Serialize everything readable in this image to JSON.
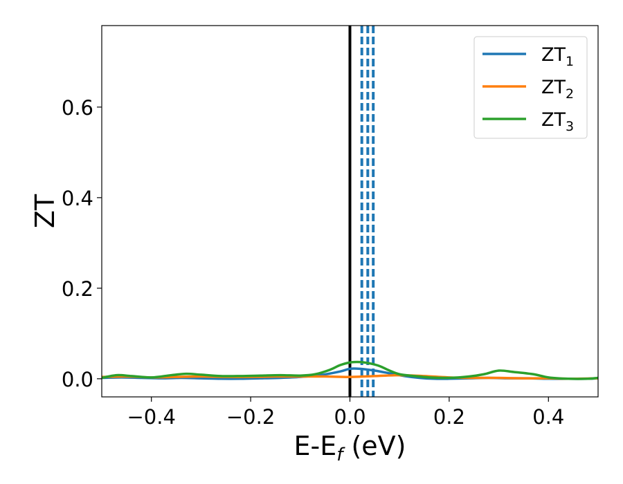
{
  "chart_data": {
    "type": "line",
    "xlabel": "E-E",
    "xlabel_sub": "f",
    "xlabel_unit": " (eV)",
    "ylabel": "ZT",
    "xlim": [
      -0.5,
      0.5
    ],
    "ylim": [
      -0.04,
      0.78
    ],
    "x_ticks": [
      -0.4,
      -0.2,
      0.0,
      0.2,
      0.4
    ],
    "x_tick_labels": [
      "−0.4",
      "−0.2",
      "0.0",
      "0.2",
      "0.4"
    ],
    "y_ticks": [
      0.0,
      0.2,
      0.4,
      0.6
    ],
    "y_tick_labels": [
      "0.0",
      "0.2",
      "0.4",
      "0.6"
    ],
    "grid": false,
    "legend_position": "top-right",
    "series": [
      {
        "name": "ZT",
        "name_sub": "1",
        "color": "#1f77b4",
        "x": [
          -0.5,
          -0.46,
          -0.42,
          -0.38,
          -0.34,
          -0.3,
          -0.26,
          -0.22,
          -0.18,
          -0.14,
          -0.1,
          -0.06,
          -0.02,
          0.0,
          0.02,
          0.05,
          0.08,
          0.11,
          0.14,
          0.17,
          0.2,
          0.24,
          0.28,
          0.32,
          0.36,
          0.4,
          0.44,
          0.48,
          0.5
        ],
        "y": [
          0.002,
          0.003,
          0.002,
          0.001,
          0.002,
          0.001,
          0.0,
          0.0,
          0.001,
          0.002,
          0.004,
          0.008,
          0.016,
          0.022,
          0.022,
          0.018,
          0.012,
          0.006,
          0.002,
          0.0,
          0.0,
          0.001,
          0.002,
          0.001,
          0.001,
          0.0,
          0.0,
          0.0,
          0.001
        ]
      },
      {
        "name": "ZT",
        "name_sub": "2",
        "color": "#ff7f0e",
        "x": [
          -0.5,
          -0.45,
          -0.4,
          -0.35,
          -0.3,
          -0.25,
          -0.2,
          -0.15,
          -0.1,
          -0.05,
          0.0,
          0.05,
          0.1,
          0.15,
          0.2,
          0.25,
          0.3,
          0.35,
          0.4,
          0.45,
          0.5
        ],
        "y": [
          0.004,
          0.005,
          0.003,
          0.004,
          0.005,
          0.004,
          0.004,
          0.005,
          0.005,
          0.005,
          0.004,
          0.006,
          0.008,
          0.006,
          0.003,
          0.002,
          0.002,
          0.001,
          0.001,
          0.0,
          0.001
        ]
      },
      {
        "name": "ZT",
        "name_sub": "3",
        "color": "#2ca02c",
        "x": [
          -0.5,
          -0.47,
          -0.44,
          -0.4,
          -0.36,
          -0.33,
          -0.3,
          -0.26,
          -0.22,
          -0.18,
          -0.14,
          -0.1,
          -0.07,
          -0.04,
          -0.02,
          0.0,
          0.02,
          0.04,
          0.06,
          0.08,
          0.1,
          0.13,
          0.16,
          0.2,
          0.24,
          0.27,
          0.3,
          0.33,
          0.37,
          0.4,
          0.44,
          0.48,
          0.5
        ],
        "y": [
          0.002,
          0.008,
          0.006,
          0.003,
          0.008,
          0.011,
          0.009,
          0.006,
          0.006,
          0.007,
          0.008,
          0.007,
          0.01,
          0.02,
          0.03,
          0.036,
          0.037,
          0.034,
          0.028,
          0.018,
          0.01,
          0.006,
          0.003,
          0.002,
          0.005,
          0.01,
          0.018,
          0.015,
          0.01,
          0.003,
          0.0,
          0.0,
          0.002
        ]
      }
    ],
    "vertical_lines": [
      {
        "x": 0.0,
        "style": "solid",
        "color": "#000000"
      },
      {
        "x": 0.024,
        "style": "dashed",
        "color": "#1f77b4"
      },
      {
        "x": 0.036,
        "style": "dashed",
        "color": "#1f77b4"
      },
      {
        "x": 0.047,
        "style": "dashed",
        "color": "#1f77b4"
      }
    ]
  }
}
